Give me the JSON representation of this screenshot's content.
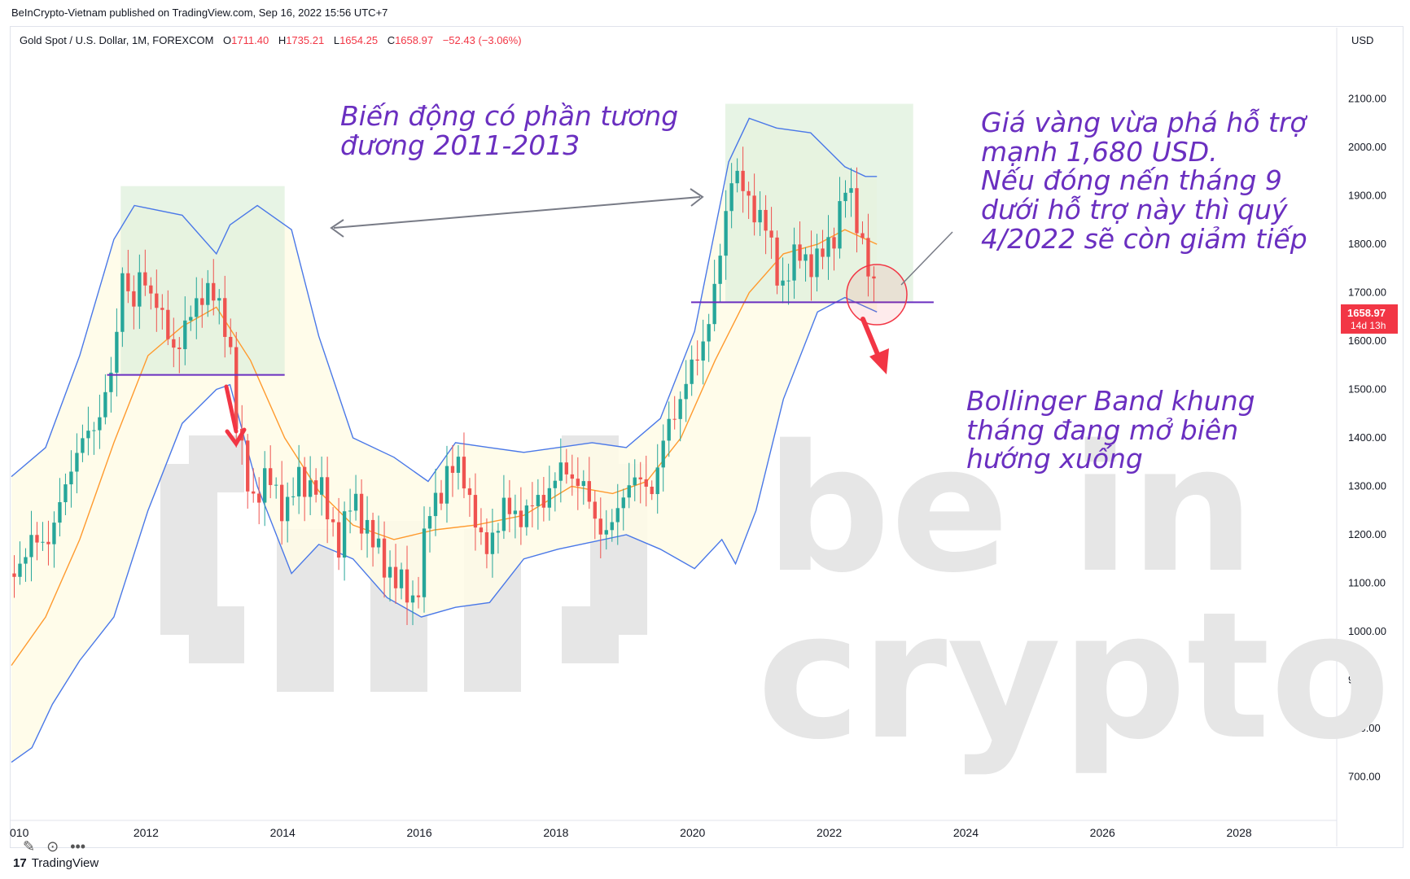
{
  "header": {
    "published": "BeInCrypto-Vietnam published on TradingView.com, Sep 16, 2022 15:56 UTC+7"
  },
  "legend": {
    "symbol": "Gold Spot / U.S. Dollar, 1M, FOREXCOM",
    "o_label": "O",
    "o_value": "1711.40",
    "h_label": "H",
    "h_value": "1735.21",
    "l_label": "L",
    "l_value": "1654.25",
    "c_label": "C",
    "c_value": "1658.97",
    "change": "−52.43 (−3.06%)"
  },
  "annotations": {
    "left_range": "Biến động có phần tương\nđương 2011-2013",
    "right_note": "Giá vàng vừa phá hỗ trợ\nmạnh 1,680 USD.\nNếu đóng nến tháng 9\ndưới hỗ trợ này thì quý\n4/2022 sẽ còn giảm tiếp",
    "bollinger_note": "Bollinger Band khung\ntháng đang mở biên\nhướng xuống"
  },
  "watermark": {
    "line1": "be in",
    "line2": "crypto"
  },
  "footer": {
    "logo_mark": "17",
    "logo_text": "TradingView"
  },
  "colors": {
    "up": "#26a69a",
    "down": "#ef5350",
    "band": "#4a78e8",
    "basis": "#ff9a2e",
    "band_fill": "#fffbe6",
    "range_fill": "#dff0dc",
    "support": "#6a2fc0",
    "annotation": "#6a2fc0",
    "arrow_red": "#f23645",
    "arrow_gray": "#787b86"
  },
  "chart_data": {
    "type": "candlestick",
    "title": "Gold Spot / U.S. Dollar, 1M, FOREXCOM",
    "ylabel": "USD",
    "ylim": [
      620,
      2180
    ],
    "xlim": [
      2010.0,
      2029.4
    ],
    "y_ticks": [
      "2100.00",
      "2000.00",
      "1900.00",
      "1800.00",
      "1700.00",
      "1600.00",
      "1500.00",
      "1400.00",
      "1300.00",
      "1200.00",
      "1100.00",
      "1000.00",
      "900.00",
      "800.00",
      "700.00"
    ],
    "x_ticks": [
      "010",
      "2012",
      "2014",
      "2016",
      "2018",
      "2020",
      "2022",
      "2024",
      "2026",
      "2028"
    ],
    "last_price": {
      "value": "1658.97",
      "countdown": "14d 13h"
    },
    "anchors": [
      [
        2010.0,
        1120
      ],
      [
        2010.3,
        1180
      ],
      [
        2010.6,
        1200
      ],
      [
        2010.9,
        1360
      ],
      [
        2011.2,
        1420
      ],
      [
        2011.5,
        1540
      ],
      [
        2011.65,
        1800
      ],
      [
        2011.75,
        1640
      ],
      [
        2011.9,
        1740
      ],
      [
        2012.1,
        1690
      ],
      [
        2012.35,
        1580
      ],
      [
        2012.6,
        1640
      ],
      [
        2012.85,
        1720
      ],
      [
        2013.05,
        1660
      ],
      [
        2013.2,
        1600
      ],
      [
        2013.3,
        1420
      ],
      [
        2013.5,
        1270
      ],
      [
        2013.75,
        1320
      ],
      [
        2014.0,
        1250
      ],
      [
        2014.2,
        1310
      ],
      [
        2014.5,
        1300
      ],
      [
        2014.8,
        1180
      ],
      [
        2015.0,
        1280
      ],
      [
        2015.3,
        1180
      ],
      [
        2015.6,
        1110
      ],
      [
        2015.92,
        1060
      ],
      [
        2016.1,
        1240
      ],
      [
        2016.4,
        1330
      ],
      [
        2016.6,
        1340
      ],
      [
        2016.9,
        1160
      ],
      [
        2017.2,
        1250
      ],
      [
        2017.5,
        1240
      ],
      [
        2017.8,
        1280
      ],
      [
        2018.1,
        1340
      ],
      [
        2018.35,
        1300
      ],
      [
        2018.6,
        1220
      ],
      [
        2018.75,
        1195
      ],
      [
        2019.0,
        1310
      ],
      [
        2019.4,
        1300
      ],
      [
        2019.6,
        1420
      ],
      [
        2019.9,
        1520
      ],
      [
        2020.1,
        1590
      ],
      [
        2020.3,
        1700
      ],
      [
        2020.55,
        1960
      ],
      [
        2020.8,
        1880
      ],
      [
        2021.0,
        1860
      ],
      [
        2021.25,
        1710
      ],
      [
        2021.5,
        1780
      ],
      [
        2021.75,
        1760
      ],
      [
        2022.0,
        1800
      ],
      [
        2022.2,
        1920
      ],
      [
        2022.4,
        1840
      ],
      [
        2022.55,
        1750
      ],
      [
        2022.67,
        1660
      ]
    ],
    "upper_band": [
      [
        2010.0,
        1320
      ],
      [
        2010.5,
        1380
      ],
      [
        2011.0,
        1570
      ],
      [
        2011.5,
        1810
      ],
      [
        2011.8,
        1880
      ],
      [
        2012.5,
        1860
      ],
      [
        2013.0,
        1780
      ],
      [
        2013.2,
        1840
      ],
      [
        2013.6,
        1880
      ],
      [
        2014.1,
        1830
      ],
      [
        2014.5,
        1610
      ],
      [
        2015.0,
        1400
      ],
      [
        2015.6,
        1360
      ],
      [
        2016.1,
        1310
      ],
      [
        2016.5,
        1390
      ],
      [
        2017.0,
        1380
      ],
      [
        2017.5,
        1370
      ],
      [
        2018.0,
        1380
      ],
      [
        2018.5,
        1390
      ],
      [
        2019.0,
        1380
      ],
      [
        2019.5,
        1440
      ],
      [
        2020.0,
        1620
      ],
      [
        2020.5,
        1970
      ],
      [
        2020.8,
        2060
      ],
      [
        2021.2,
        2040
      ],
      [
        2021.7,
        2030
      ],
      [
        2022.2,
        1960
      ],
      [
        2022.5,
        1940
      ],
      [
        2022.67,
        1940
      ]
    ],
    "basis": [
      [
        2010.0,
        930
      ],
      [
        2010.5,
        1030
      ],
      [
        2011.0,
        1190
      ],
      [
        2011.5,
        1390
      ],
      [
        2012.0,
        1570
      ],
      [
        2012.5,
        1630
      ],
      [
        2013.0,
        1670
      ],
      [
        2013.5,
        1560
      ],
      [
        2014.0,
        1400
      ],
      [
        2014.5,
        1290
      ],
      [
        2015.0,
        1220
      ],
      [
        2015.6,
        1190
      ],
      [
        2016.2,
        1210
      ],
      [
        2016.8,
        1220
      ],
      [
        2017.5,
        1240
      ],
      [
        2018.2,
        1300
      ],
      [
        2018.8,
        1285
      ],
      [
        2019.3,
        1310
      ],
      [
        2019.8,
        1400
      ],
      [
        2020.3,
        1560
      ],
      [
        2020.8,
        1700
      ],
      [
        2021.3,
        1780
      ],
      [
        2021.8,
        1800
      ],
      [
        2022.2,
        1830
      ],
      [
        2022.67,
        1800
      ]
    ],
    "lower_band": [
      [
        2010.0,
        730
      ],
      [
        2010.3,
        760
      ],
      [
        2010.6,
        850
      ],
      [
        2011.0,
        940
      ],
      [
        2011.5,
        1030
      ],
      [
        2012.0,
        1250
      ],
      [
        2012.5,
        1430
      ],
      [
        2013.0,
        1500
      ],
      [
        2013.2,
        1510
      ],
      [
        2013.6,
        1300
      ],
      [
        2014.1,
        1120
      ],
      [
        2014.5,
        1180
      ],
      [
        2015.0,
        1150
      ],
      [
        2015.5,
        1070
      ],
      [
        2016.0,
        1030
      ],
      [
        2016.5,
        1050
      ],
      [
        2017.0,
        1060
      ],
      [
        2017.5,
        1150
      ],
      [
        2018.0,
        1170
      ],
      [
        2018.5,
        1185
      ],
      [
        2019.0,
        1200
      ],
      [
        2019.5,
        1170
      ],
      [
        2020.0,
        1130
      ],
      [
        2020.4,
        1190
      ],
      [
        2020.6,
        1140
      ],
      [
        2020.9,
        1250
      ],
      [
        2021.3,
        1480
      ],
      [
        2021.8,
        1660
      ],
      [
        2022.2,
        1690
      ],
      [
        2022.67,
        1660
      ]
    ],
    "range_boxes": [
      {
        "x0": 2011.6,
        "x1": 2014.0,
        "y0": 1530,
        "y1": 1920
      },
      {
        "x0": 2020.45,
        "x1": 2023.2,
        "y0": 1680,
        "y1": 2090
      }
    ],
    "support_lines": [
      {
        "x0": 2011.4,
        "x1": 2014.0,
        "y": 1530
      },
      {
        "x0": 2019.95,
        "x1": 2023.5,
        "y": 1680
      }
    ]
  }
}
